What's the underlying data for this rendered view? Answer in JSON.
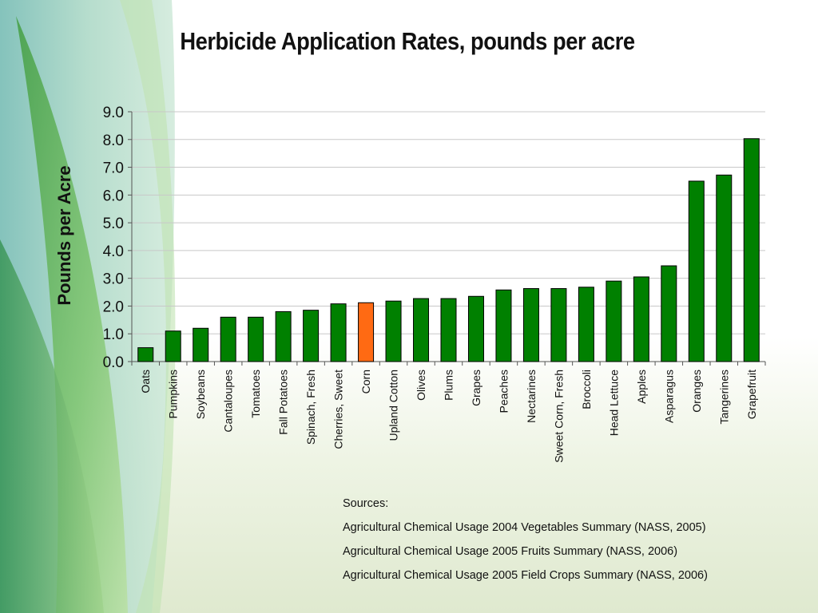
{
  "chart_data": {
    "type": "bar",
    "title": "Herbicide Application Rates, pounds per acre",
    "ylabel": "Pounds per Acre",
    "xlabel": "",
    "ylim": [
      0,
      9
    ],
    "yticks": [
      "0.0",
      "1.0",
      "2.0",
      "3.0",
      "4.0",
      "5.0",
      "6.0",
      "7.0",
      "8.0",
      "9.0"
    ],
    "grid": true,
    "categories": [
      "Oats",
      "Pumpkins",
      "Soybeans",
      "Cantaloupes",
      "Tomatoes",
      "Fall Potatoes",
      "Spinach, Fresh",
      "Cherries, Sweet",
      "Corn",
      "Upland Cotton",
      "Olives",
      "Plums",
      "Grapes",
      "Peaches",
      "Nectarines",
      "Sweet Corn, Fresh",
      "Broccoli",
      "Head Lettuce",
      "Apples",
      "Asparagus",
      "Oranges",
      "Tangerines",
      "Grapefruit"
    ],
    "values": [
      0.5,
      1.1,
      1.2,
      1.6,
      1.6,
      1.8,
      1.85,
      2.08,
      2.12,
      2.18,
      2.27,
      2.27,
      2.35,
      2.58,
      2.63,
      2.63,
      2.68,
      2.9,
      3.05,
      3.45,
      6.5,
      6.72,
      8.03
    ],
    "colors": {
      "default": "#008000",
      "highlight": "#ff6a13",
      "highlight_category": "Corn"
    }
  },
  "sources": {
    "heading": "Sources:",
    "lines": [
      "Agricultural Chemical Usage 2004 Vegetables Summary (NASS, 2005)",
      "Agricultural Chemical Usage 2005 Fruits Summary (NASS, 2006)",
      "Agricultural Chemical Usage 2005 Field Crops Summary (NASS, 2006)"
    ]
  }
}
